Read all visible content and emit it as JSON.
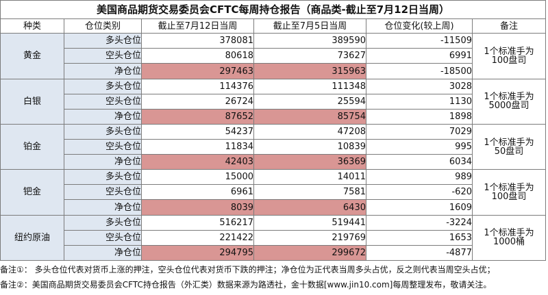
{
  "title": "美国商品期货交易委员会CFTC每周持仓报告（商品类-截止至7月12日当周）",
  "headers": [
    "种类",
    "仓位类别",
    "截止至7月12日当周",
    "截止至7月5日当周",
    "仓位变化(较上周)",
    "备注"
  ],
  "groups": [
    {
      "name": "黄金",
      "note_line1": "1个标准手为",
      "note_line2": "100盘司",
      "rows": [
        {
          "label": "多头仓位",
          "current": "378081",
          "previous": "389590",
          "change": "-11509"
        },
        {
          "label": "空头仓位",
          "current": "80618",
          "previous": "73627",
          "change": "6991"
        },
        {
          "label": "净仓位",
          "current": "297463",
          "previous": "315963",
          "change": "-18500"
        }
      ]
    },
    {
      "name": "白银",
      "note_line1": "1个标准手为",
      "note_line2": "5000盘司",
      "rows": [
        {
          "label": "多头仓位",
          "current": "114376",
          "previous": "111348",
          "change": "3028"
        },
        {
          "label": "空头仓位",
          "current": "26724",
          "previous": "25594",
          "change": "1130"
        },
        {
          "label": "净仓位",
          "current": "87652",
          "previous": "85754",
          "change": "1898"
        }
      ]
    },
    {
      "name": "铂金",
      "note_line1": "1个标准手为",
      "note_line2": "50盘司",
      "rows": [
        {
          "label": "多头仓位",
          "current": "54237",
          "previous": "47208",
          "change": "7029"
        },
        {
          "label": "空头仓位",
          "current": "11834",
          "previous": "10839",
          "change": "995"
        },
        {
          "label": "净仓位",
          "current": "42403",
          "previous": "36369",
          "change": "6034"
        }
      ]
    },
    {
      "name": "钯金",
      "note_line1": "1个标准手为",
      "note_line2": "100盘司",
      "rows": [
        {
          "label": "多头仓位",
          "current": "15000",
          "previous": "14011",
          "change": "989"
        },
        {
          "label": "空头仓位",
          "current": "6961",
          "previous": "7581",
          "change": "-620"
        },
        {
          "label": "净仓位",
          "current": "8039",
          "previous": "6430",
          "change": "1609"
        }
      ]
    },
    {
      "name": "纽约原油",
      "note_line1": "1个标准手为",
      "note_line2": "1000桶",
      "rows": [
        {
          "label": "多头仓位",
          "current": "516217",
          "previous": "519441",
          "change": "-3224"
        },
        {
          "label": "空头仓位",
          "current": "221422",
          "previous": "219769",
          "change": "1653"
        },
        {
          "label": "净仓位",
          "current": "294795",
          "previous": "299672",
          "change": "-4877"
        }
      ]
    }
  ],
  "footnotes": [
    "备注①： 多头仓位代表对货币上涨的押注，空头仓位代表对货币下跌的押注；净仓位为正代表当周多头占优，反之则代表当周空头占优；",
    "备注②：美国商品期货交易委员会CFTC持仓报告（外汇类）数据来源为路透社，金十数据[www.jin10.com]每周整理发布，敬请关注。"
  ],
  "colors": {
    "category_bg": "#dfe7f1",
    "net_highlight_bg": "#d99694",
    "border": "#7b7b7b"
  }
}
